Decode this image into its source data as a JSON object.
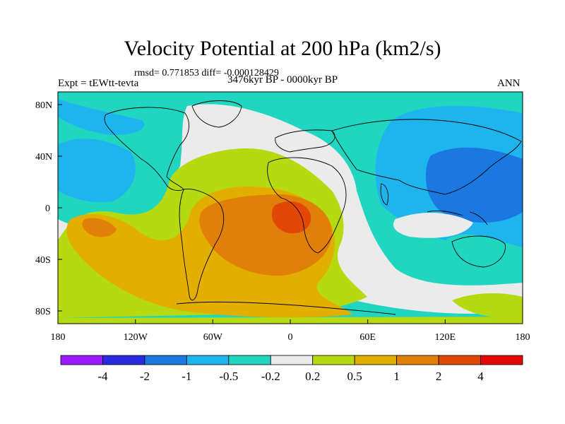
{
  "title": "Velocity Potential at 200 hPa (km2/s)",
  "stats": "rmsd= 0.771853 diff= -0.000128429",
  "experiment": "Expt = tEWtt-tevta",
  "period": "3476kyr BP - 0000kyr BP",
  "season": "ANN",
  "y_ticks": [
    "80N",
    "40N",
    "0",
    "40S",
    "80S"
  ],
  "x_ticks": [
    "180",
    "120W",
    "60W",
    "0",
    "60E",
    "120E",
    "180"
  ],
  "colorbar": {
    "colors": [
      "#9a1bff",
      "#2a2adf",
      "#1a78e0",
      "#1eb4ee",
      "#20d6c0",
      "#ebebeb",
      "#b6d90f",
      "#e2ae00",
      "#e08008",
      "#e24708",
      "#e40808"
    ],
    "labels": [
      "-4",
      "-2",
      "-1",
      "-0.5",
      "-0.2",
      "0.2",
      "0.5",
      "1",
      "2",
      "4"
    ]
  }
}
